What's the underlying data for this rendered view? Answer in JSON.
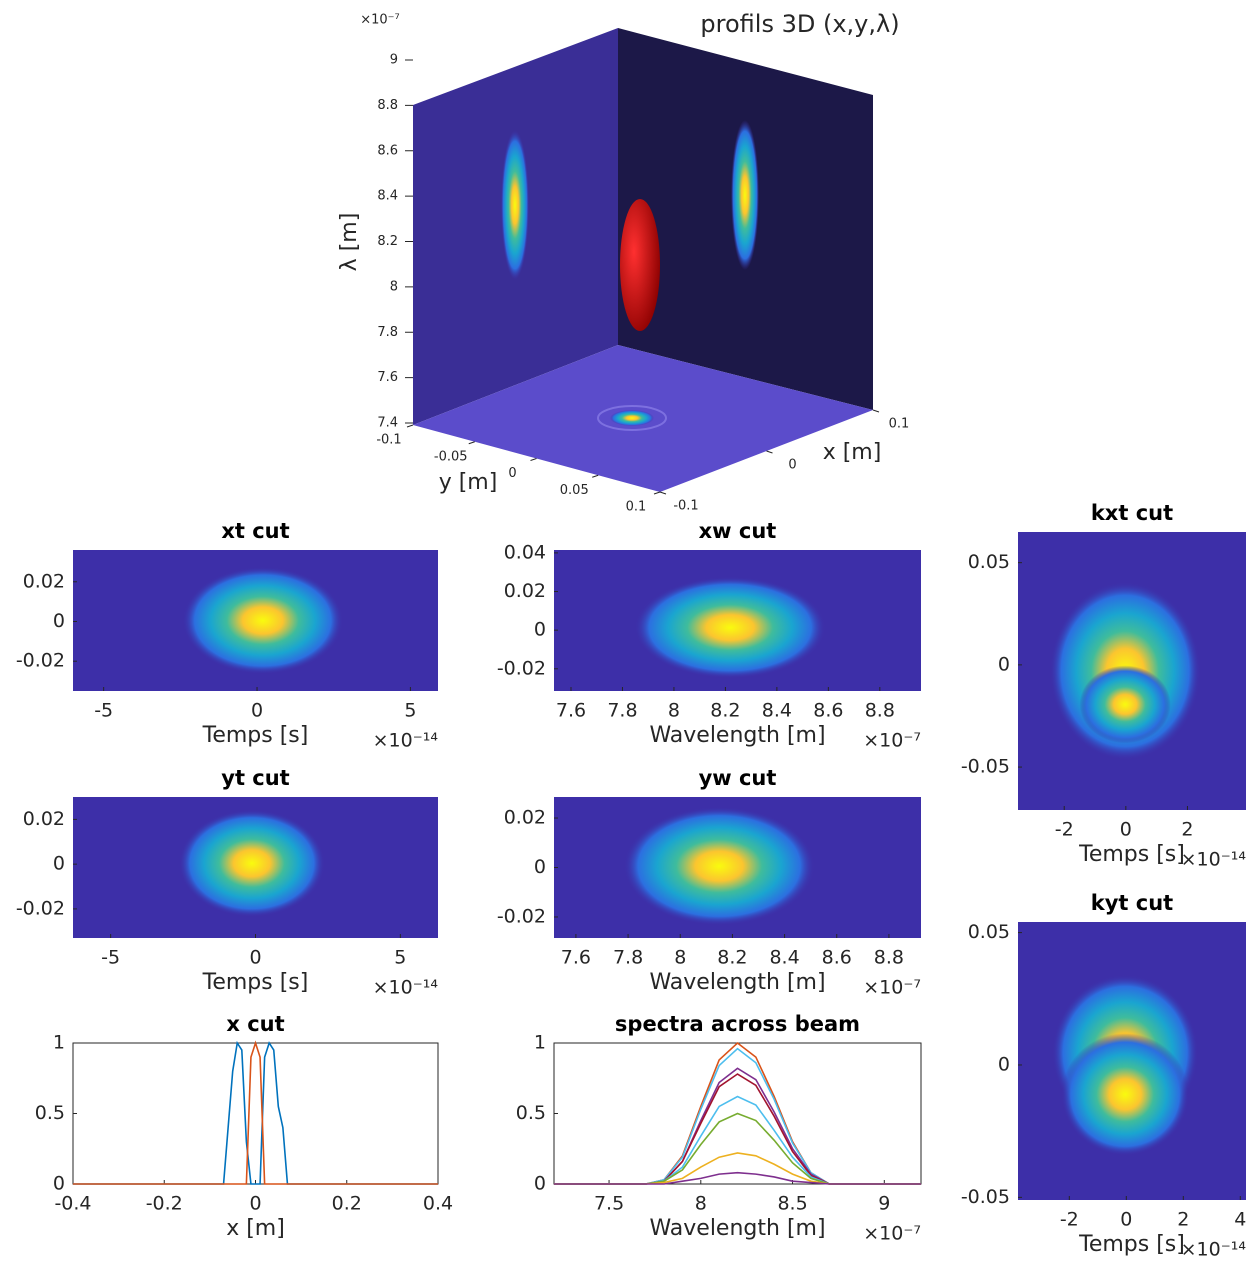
{
  "chart_data": [
    {
      "type": "surface3d",
      "title": "profils 3D (x,y,λ)",
      "xlabel": "x [m]",
      "ylabel": "y [m]",
      "zlabel": "λ [m]",
      "xlim": [
        -0.1,
        0.1
      ],
      "xticks": [
        -0.1,
        0,
        0.1
      ],
      "ylim": [
        -0.1,
        0.1
      ],
      "yticks": [
        -0.1,
        -0.05,
        0,
        0.05,
        0.1
      ],
      "zlim": [
        7.4,
        9
      ],
      "zticks": [
        7.4,
        7.6,
        7.8,
        8,
        8.2,
        8.4,
        8.6,
        8.8,
        9
      ],
      "z_exponent": "×10⁻⁷"
    },
    {
      "type": "heatmap",
      "title": "xt cut",
      "xlabel": "Temps [s]",
      "x_exponent": "×10⁻¹⁴",
      "xlim": [
        -6,
        5.9
      ],
      "xticks": [
        -5,
        0,
        5
      ],
      "ylim": [
        -0.035,
        0.036
      ],
      "yticks": [
        -0.02,
        0,
        0.02
      ]
    },
    {
      "type": "heatmap",
      "title": "xw cut",
      "xlabel": "Wavelength [m]",
      "x_exponent": "×10⁻⁷",
      "xlim": [
        7.534,
        8.96
      ],
      "xticks": [
        7.6,
        7.8,
        8,
        8.2,
        8.4,
        8.6,
        8.8
      ],
      "ylim": [
        -0.0315,
        0.0415
      ],
      "yticks": [
        -0.02,
        0,
        0.02,
        0.04
      ]
    },
    {
      "type": "heatmap",
      "title": "kxt cut",
      "xlabel": "Temps [s]",
      "x_exponent": "×10⁻¹⁴",
      "xlim": [
        -3.5,
        3.9
      ],
      "xticks": [
        -2,
        0,
        2
      ],
      "ylim": [
        -0.071,
        0.065
      ],
      "yticks": [
        -0.05,
        0,
        0.05
      ]
    },
    {
      "type": "heatmap",
      "title": "yt cut",
      "xlabel": "Temps [s]",
      "x_exponent": "×10⁻¹⁴",
      "xlim": [
        -6.3,
        6.3
      ],
      "xticks": [
        -5,
        0,
        5
      ],
      "ylim": [
        -0.033,
        0.03
      ],
      "yticks": [
        -0.02,
        0,
        0.02
      ]
    },
    {
      "type": "heatmap",
      "title": "yw cut",
      "xlabel": "Wavelength [m]",
      "x_exponent": "×10⁻⁷",
      "xlim": [
        7.516,
        8.923
      ],
      "xticks": [
        7.6,
        7.8,
        8,
        8.2,
        8.4,
        8.6,
        8.8
      ],
      "ylim": [
        -0.0285,
        0.0285
      ],
      "yticks": [
        -0.02,
        0,
        0.02
      ]
    },
    {
      "type": "heatmap",
      "title": "kyt cut",
      "xlabel": "Temps [s]",
      "x_exponent": "×10⁻¹⁴",
      "xlim": [
        -3.8,
        4.2
      ],
      "xticks": [
        -2,
        0,
        2,
        4
      ],
      "ylim": [
        -0.051,
        0.054
      ],
      "yticks": [
        -0.05,
        0,
        0.05
      ]
    },
    {
      "type": "line",
      "title": "x cut",
      "xlabel": "x [m]",
      "xlim": [
        -0.4,
        0.4
      ],
      "xticks": [
        -0.4,
        -0.2,
        0,
        0.2,
        0.4
      ],
      "ylim": [
        0,
        1
      ],
      "yticks": [
        0,
        0.5,
        1
      ],
      "series": [
        {
          "color": "#0072bd",
          "x": [
            -0.4,
            -0.07,
            -0.06,
            -0.05,
            -0.04,
            -0.03,
            -0.02,
            -0.01,
            0,
            0.01,
            0.02,
            0.03,
            0.04,
            0.05,
            0.06,
            0.07,
            0.4
          ],
          "values": [
            0,
            0,
            0.4,
            0.8,
            1,
            0.95,
            0.3,
            0,
            0,
            0,
            0.9,
            1,
            0.95,
            0.55,
            0.4,
            0,
            0
          ]
        },
        {
          "color": "#d95319",
          "x": [
            -0.4,
            -0.02,
            -0.01,
            0,
            0.01,
            0.02,
            0.4
          ],
          "values": [
            0,
            0,
            0.9,
            1,
            0.9,
            0,
            0
          ]
        }
      ]
    },
    {
      "type": "line",
      "title": "spectra across beam",
      "xlabel": "Wavelength [m]",
      "x_exponent": "×10⁻⁷",
      "xlim": [
        7.2,
        9.2
      ],
      "xticks": [
        7.5,
        8,
        8.5,
        9
      ],
      "ylim": [
        0,
        1
      ],
      "yticks": [
        0,
        0.5,
        1
      ],
      "x": [
        7.2,
        7.7,
        7.8,
        7.9,
        8.0,
        8.1,
        8.2,
        8.3,
        8.4,
        8.5,
        8.6,
        8.7,
        9.2
      ],
      "series": [
        {
          "color": "#d95319",
          "values": [
            0,
            0,
            0.03,
            0.2,
            0.55,
            0.88,
            1,
            0.9,
            0.62,
            0.3,
            0.08,
            0,
            0
          ]
        },
        {
          "color": "#4dbeee",
          "values": [
            0,
            0,
            0.03,
            0.19,
            0.53,
            0.84,
            0.96,
            0.86,
            0.6,
            0.29,
            0.08,
            0,
            0
          ]
        },
        {
          "color": "#7e2f8e",
          "values": [
            0,
            0,
            0.02,
            0.16,
            0.45,
            0.72,
            0.82,
            0.74,
            0.51,
            0.25,
            0.07,
            0,
            0
          ]
        },
        {
          "color": "#a2142f",
          "values": [
            0,
            0,
            0.02,
            0.16,
            0.43,
            0.69,
            0.78,
            0.7,
            0.48,
            0.23,
            0.06,
            0,
            0
          ]
        },
        {
          "color": "#4dbeee",
          "values": [
            0,
            0,
            0.02,
            0.12,
            0.34,
            0.55,
            0.62,
            0.56,
            0.38,
            0.19,
            0.05,
            0,
            0
          ]
        },
        {
          "color": "#77ac30",
          "values": [
            0,
            0,
            0.02,
            0.1,
            0.28,
            0.44,
            0.5,
            0.45,
            0.31,
            0.15,
            0.04,
            0,
            0
          ]
        },
        {
          "color": "#edb120",
          "values": [
            0,
            0,
            0.01,
            0.04,
            0.12,
            0.19,
            0.22,
            0.2,
            0.14,
            0.07,
            0.02,
            0,
            0
          ]
        },
        {
          "color": "#7e2f8e",
          "values": [
            0,
            0,
            0,
            0.02,
            0.04,
            0.07,
            0.08,
            0.07,
            0.05,
            0.02,
            0.01,
            0,
            0
          ]
        }
      ]
    }
  ]
}
